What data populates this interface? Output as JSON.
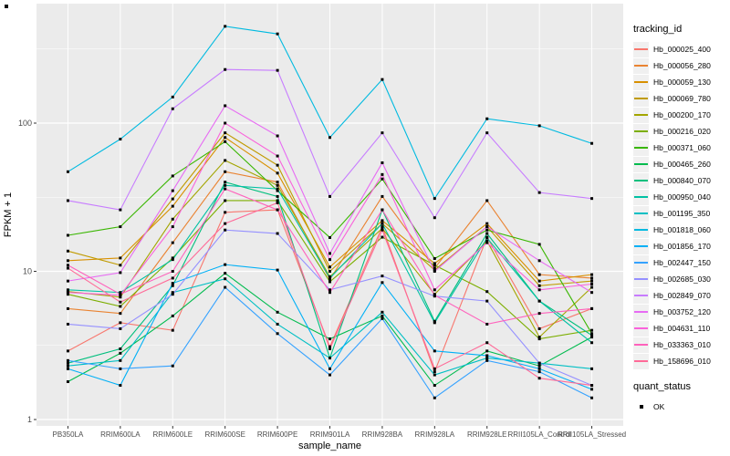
{
  "chart_data": {
    "type": "line",
    "title": "",
    "xlabel": "sample_name",
    "ylabel": "FPKM + 1",
    "y_scale": "log10",
    "y_ticks": [
      1,
      10,
      100
    ],
    "ylim": [
      1,
      650
    ],
    "grid": "on",
    "legend_position": "right",
    "panel_bg": "#EBEBEB",
    "grid_color": "#FFFFFF",
    "tick_text_color": "#4D4D4D",
    "point_color": "#000000",
    "categories": [
      "PB350LA",
      "RRIM600LA",
      "RRIM600LE",
      "RRIM600SE",
      "RRIM600PE",
      "RRIM901LA",
      "RRIM928BA",
      "RRIM928LA",
      "RRIM928LE",
      "RRII105LA_Control",
      "RRII105LA_Stressed"
    ],
    "legend_title": "tracking_id",
    "quant_legend": {
      "title": "quant_status",
      "items": [
        "OK"
      ]
    },
    "series": [
      {
        "name": "Hb_000025_400",
        "color": "#F8766D",
        "values": [
          2.9,
          4.5,
          4.0,
          25,
          26,
          3.1,
          20,
          2.1,
          17,
          4.1,
          5.6
        ]
      },
      {
        "name": "Hb_000056_280",
        "color": "#EA8331",
        "values": [
          5.6,
          5.2,
          15.6,
          47,
          40,
          8.8,
          32,
          10.5,
          30,
          9.5,
          9.0
        ]
      },
      {
        "name": "Hb_000059_130",
        "color": "#D89000",
        "values": [
          11.8,
          12.3,
          27.5,
          80,
          46,
          10.7,
          22,
          11.3,
          21,
          8.6,
          9.5
        ]
      },
      {
        "name": "Hb_000069_780",
        "color": "#C09B00",
        "values": [
          13.7,
          11.0,
          30.8,
          86,
          52,
          10.0,
          21,
          10.2,
          20,
          8.0,
          8.6
        ]
      },
      {
        "name": "Hb_000200_170",
        "color": "#A3A500",
        "values": [
          7.3,
          6.7,
          22.5,
          56,
          38,
          9.2,
          19.5,
          7.0,
          16,
          3.6,
          7.8
        ]
      },
      {
        "name": "Hb_000216_020",
        "color": "#7CAE00",
        "values": [
          7.0,
          5.8,
          12.3,
          30,
          30,
          8.5,
          17,
          11.0,
          7.3,
          3.5,
          4.0
        ]
      },
      {
        "name": "Hb_000371_060",
        "color": "#39B600",
        "values": [
          17.5,
          20,
          44,
          75,
          35,
          16.9,
          42,
          12.2,
          19,
          15.2,
          3.8
        ]
      },
      {
        "name": "Hb_000465_260",
        "color": "#00BB4E",
        "values": [
          1.8,
          2.8,
          5.0,
          9.7,
          5.3,
          3.5,
          5.0,
          1.7,
          2.9,
          2.3,
          3.6
        ]
      },
      {
        "name": "Hb_000840_070",
        "color": "#00BF7D",
        "values": [
          2.4,
          3.0,
          8.0,
          40,
          32,
          2.6,
          26,
          4.6,
          18,
          6.3,
          3.7
        ]
      },
      {
        "name": "Hb_000950_040",
        "color": "#00C1A3",
        "values": [
          7.5,
          7.2,
          12.0,
          38,
          36,
          9.0,
          21,
          4.5,
          16.8,
          6.3,
          3.3
        ]
      },
      {
        "name": "Hb_001195_350",
        "color": "#00BFC4",
        "values": [
          2.3,
          2.5,
          7.2,
          8.9,
          4.4,
          2.6,
          5.3,
          2.0,
          2.6,
          2.4,
          2.2
        ]
      },
      {
        "name": "Hb_001818_060",
        "color": "#00BAE0",
        "values": [
          47,
          78,
          150,
          450,
          400,
          80,
          197,
          31,
          107,
          96,
          73
        ]
      },
      {
        "name": "Hb_001856_170",
        "color": "#00B0F6",
        "values": [
          2.2,
          1.7,
          8.3,
          11.1,
          10.2,
          2.2,
          8.4,
          2.9,
          2.7,
          2.2,
          1.6
        ]
      },
      {
        "name": "Hb_002447_150",
        "color": "#35A2FF",
        "values": [
          2.5,
          2.2,
          2.3,
          7.8,
          3.8,
          2.0,
          4.8,
          1.4,
          2.5,
          2.1,
          1.4
        ]
      },
      {
        "name": "Hb_002685_030",
        "color": "#9590FF",
        "values": [
          4.4,
          4.1,
          7.0,
          19,
          18,
          7.5,
          9.3,
          6.8,
          6.3,
          2.4,
          1.7
        ]
      },
      {
        "name": "Hb_002849_070",
        "color": "#C77CFF",
        "values": [
          30,
          26,
          125,
          230,
          227,
          32,
          86,
          23,
          86,
          34,
          31
        ]
      },
      {
        "name": "Hb_003752_120",
        "color": "#E76BF3",
        "values": [
          8.6,
          9.8,
          35,
          131,
          82,
          13.2,
          54,
          10.0,
          20,
          11.8,
          7.2
        ]
      },
      {
        "name": "Hb_004631_110",
        "color": "#FA62DB",
        "values": [
          7.2,
          6.9,
          20,
          100,
          60,
          12.0,
          45,
          7.5,
          15.6,
          7.5,
          8.2
        ]
      },
      {
        "name": "Hb_033363_010",
        "color": "#FF62BC",
        "values": [
          11.0,
          7.0,
          10.0,
          36,
          26,
          7.2,
          26,
          6.9,
          4.4,
          5.2,
          5.6
        ]
      },
      {
        "name": "Hb_158696_010",
        "color": "#FF6A98",
        "values": [
          10.5,
          6.2,
          9.0,
          21,
          29,
          3.0,
          19,
          2.2,
          3.3,
          1.9,
          1.7
        ]
      }
    ]
  }
}
